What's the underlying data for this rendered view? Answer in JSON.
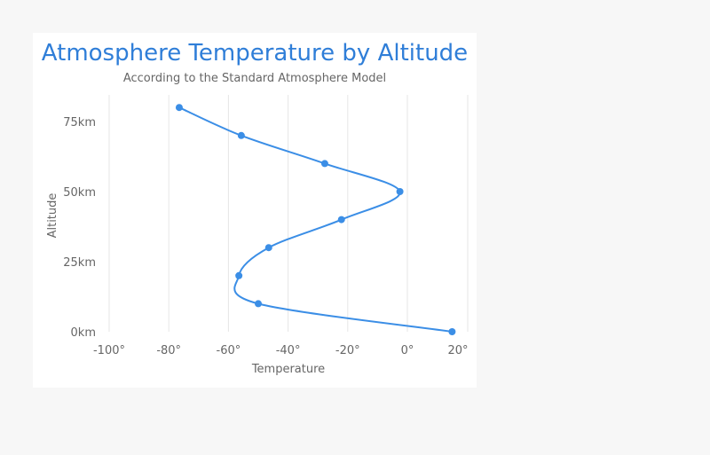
{
  "chart_data": {
    "type": "line",
    "title": "Atmosphere Temperature by Altitude",
    "subtitle": "According to the Standard Atmosphere Model",
    "xlabel": "Temperature",
    "ylabel": "Altitude",
    "x_ticks": [
      "-100°",
      "-80°",
      "-60°",
      "-40°",
      "-20°",
      "0°",
      "20°"
    ],
    "y_ticks": [
      "0km",
      "25km",
      "50km",
      "75km"
    ],
    "xlim": [
      -100,
      20
    ],
    "ylim": [
      0,
      85
    ],
    "grid": "vertical",
    "series": [
      {
        "x": [
          15,
          -50,
          -56.5,
          -46.5,
          -22.1,
          -2.5,
          -27.7,
          -55.7,
          -76.5
        ],
        "y": [
          0,
          10,
          20,
          30,
          40,
          50,
          60,
          70,
          80
        ]
      }
    ]
  },
  "colors": {
    "series": "#3b8ee6",
    "title": "#2f7ed8",
    "grid": "#e6e6e6"
  }
}
